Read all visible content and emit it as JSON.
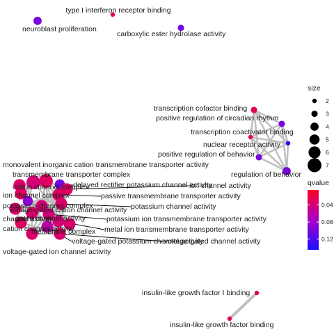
{
  "chart_data": {
    "type": "network",
    "size_legend": {
      "title": "size",
      "values": [
        2,
        3,
        4,
        5,
        6,
        7
      ]
    },
    "color_legend": {
      "title": "qvalue",
      "ticks": [
        0.04,
        0.08,
        0.12
      ],
      "range": [
        0.005,
        0.145
      ],
      "colors": {
        "low": "#ff0026",
        "mid": "#a800c8",
        "high": "#1a10ff"
      }
    },
    "colors": {
      "edge": "#c0c0c0",
      "leader": "#000000"
    },
    "nodes": [
      {
        "id": "n1",
        "name": "type I interferon receptor binding",
        "size": 2,
        "qvalue": 0.025
      },
      {
        "id": "n2",
        "name": "neuroblast proliferation",
        "size": 4,
        "qvalue": 0.1
      },
      {
        "id": "n3",
        "name": "carboxylic ester hydrolase activity",
        "size": 3,
        "qvalue": 0.1
      },
      {
        "id": "n4",
        "name": "transcription cofactor binding",
        "size": 3,
        "qvalue": 0.025
      },
      {
        "id": "n5",
        "name": "positive regulation of circadian rhythm",
        "size": 3,
        "qvalue": 0.1
      },
      {
        "id": "n6",
        "name": "transcription coactivator binding",
        "size": 2,
        "qvalue": 0.025
      },
      {
        "id": "n7",
        "name": "nuclear receptor activity",
        "size": 2,
        "qvalue": 0.14
      },
      {
        "id": "n8",
        "name": "positive regulation of behavior",
        "size": 3,
        "qvalue": 0.1
      },
      {
        "id": "n9",
        "name": "regulation of behavior",
        "size": 4,
        "qvalue": 0.1
      },
      {
        "id": "n10",
        "name": "monovalent inorganic cation transmembrane transporter activity",
        "size": 7,
        "qvalue": 0.03
      },
      {
        "id": "n11",
        "name": "transmembrane transporter complex",
        "size": 7,
        "qvalue": 0.04
      },
      {
        "id": "n12",
        "name": "cation channel complex",
        "size": 6,
        "qvalue": 0.035
      },
      {
        "id": "n13",
        "name": "ion channel complex",
        "size": 6,
        "qvalue": 0.03
      },
      {
        "id": "n14",
        "name": "delayed rectifier potassium channel activity",
        "size": 5,
        "qvalue": 0.1
      },
      {
        "id": "n15",
        "name": "ion channel activity",
        "size": 6,
        "qvalue": 0.03
      },
      {
        "id": "n16",
        "name": "passive transmembrane transporter activity",
        "size": 6,
        "qvalue": 0.03
      },
      {
        "id": "n17",
        "name": "potassium channel complex",
        "size": 5,
        "qvalue": 0.09
      },
      {
        "id": "n18",
        "name": "potassium channel activity",
        "size": 6,
        "qvalue": 0.035
      },
      {
        "id": "n19",
        "name": "voltage-gated cation channel activity",
        "size": 6,
        "qvalue": 0.04
      },
      {
        "id": "n20",
        "name": "channel activity",
        "size": 6,
        "qvalue": 0.035
      },
      {
        "id": "n21",
        "name": "gated channel activity",
        "size": 6,
        "qvalue": 0.035
      },
      {
        "id": "n22",
        "name": "potassium ion transmembrane transporter activity",
        "size": 6,
        "qvalue": 0.04
      },
      {
        "id": "n23",
        "name": "cation channel activity",
        "size": 6,
        "qvalue": 0.03
      },
      {
        "id": "n24",
        "name": "metal ion transmembrane transporter activity",
        "size": 6,
        "qvalue": 0.04
      },
      {
        "id": "n25",
        "name": "membrane complex",
        "size": 6,
        "qvalue": 0.035
      },
      {
        "id": "n26",
        "name": "voltage-gated potassium channel activity",
        "size": 6,
        "qvalue": 0.06
      },
      {
        "id": "n27",
        "name": "voltage-gated channel activity",
        "size": 6,
        "qvalue": 0.035
      },
      {
        "id": "n28",
        "name": "voltage-gated ion channel activity",
        "size": 6,
        "qvalue": 0.035
      },
      {
        "id": "n29",
        "name": "insulin-like growth factor I binding",
        "size": 2,
        "qvalue": 0.03
      },
      {
        "id": "n30",
        "name": "insulin-like growth factor binding",
        "size": 2,
        "qvalue": 0.03
      }
    ],
    "edges": [
      [
        "n4",
        "n5"
      ],
      [
        "n4",
        "n6"
      ],
      [
        "n4",
        "n7"
      ],
      [
        "n4",
        "n8"
      ],
      [
        "n4",
        "n9"
      ],
      [
        "n5",
        "n6"
      ],
      [
        "n5",
        "n7"
      ],
      [
        "n5",
        "n8"
      ],
      [
        "n5",
        "n9"
      ],
      [
        "n6",
        "n7"
      ],
      [
        "n6",
        "n8"
      ],
      [
        "n6",
        "n9"
      ],
      [
        "n7",
        "n8"
      ],
      [
        "n7",
        "n9"
      ],
      [
        "n8",
        "n9"
      ],
      [
        "n29",
        "n30"
      ],
      [
        "n10",
        "n11"
      ],
      [
        "n10",
        "n12"
      ],
      [
        "n10",
        "n13"
      ],
      [
        "n10",
        "n15"
      ],
      [
        "n10",
        "n18"
      ],
      [
        "n10",
        "n19"
      ],
      [
        "n10",
        "n22"
      ],
      [
        "n10",
        "n24"
      ],
      [
        "n11",
        "n12"
      ],
      [
        "n11",
        "n13"
      ],
      [
        "n11",
        "n17"
      ],
      [
        "n11",
        "n25"
      ],
      [
        "n12",
        "n13"
      ],
      [
        "n12",
        "n17"
      ],
      [
        "n12",
        "n25"
      ],
      [
        "n13",
        "n17"
      ],
      [
        "n13",
        "n25"
      ],
      [
        "n14",
        "n18"
      ],
      [
        "n14",
        "n19"
      ],
      [
        "n14",
        "n26"
      ],
      [
        "n14",
        "n22"
      ],
      [
        "n15",
        "n16"
      ],
      [
        "n15",
        "n18"
      ],
      [
        "n15",
        "n19"
      ],
      [
        "n15",
        "n20"
      ],
      [
        "n15",
        "n21"
      ],
      [
        "n15",
        "n23"
      ],
      [
        "n15",
        "n27"
      ],
      [
        "n15",
        "n28"
      ],
      [
        "n16",
        "n20"
      ],
      [
        "n16",
        "n21"
      ],
      [
        "n16",
        "n23"
      ],
      [
        "n18",
        "n19"
      ],
      [
        "n18",
        "n22"
      ],
      [
        "n18",
        "n26"
      ],
      [
        "n19",
        "n20"
      ],
      [
        "n19",
        "n21"
      ],
      [
        "n19",
        "n23"
      ],
      [
        "n19",
        "n26"
      ],
      [
        "n19",
        "n27"
      ],
      [
        "n19",
        "n28"
      ],
      [
        "n20",
        "n21"
      ],
      [
        "n20",
        "n23"
      ],
      [
        "n21",
        "n23"
      ],
      [
        "n21",
        "n27"
      ],
      [
        "n21",
        "n28"
      ],
      [
        "n22",
        "n24"
      ],
      [
        "n22",
        "n26"
      ],
      [
        "n23",
        "n27"
      ],
      [
        "n23",
        "n28"
      ],
      [
        "n26",
        "n27"
      ],
      [
        "n26",
        "n28"
      ],
      [
        "n27",
        "n28"
      ],
      [
        "n17",
        "n25"
      ]
    ]
  }
}
